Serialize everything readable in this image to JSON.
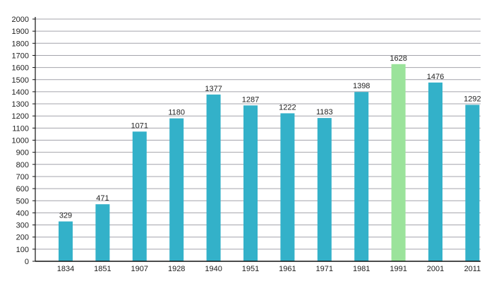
{
  "chart_data": {
    "type": "bar",
    "title": "",
    "xlabel": "",
    "ylabel": "",
    "categories": [
      "1834",
      "1851",
      "1907",
      "1928",
      "1940",
      "1951",
      "1961",
      "1971",
      "1981",
      "1991",
      "2001",
      "2011"
    ],
    "values": [
      329,
      471,
      1071,
      1180,
      1377,
      1287,
      1222,
      1183,
      1398,
      1628,
      1476,
      1292
    ],
    "ylim": [
      0,
      2000
    ],
    "yticks": [
      0,
      100,
      200,
      300,
      400,
      500,
      600,
      700,
      800,
      900,
      1000,
      1100,
      1200,
      1300,
      1400,
      1500,
      1600,
      1700,
      1800,
      1900,
      2000
    ],
    "grid": true,
    "legend": "none",
    "data_labels": true,
    "colors": {
      "default": "#33b1c9",
      "highlight": "#9be39b",
      "grid": "#a4a4ac",
      "axis": "#111111"
    },
    "highlight_category": "1991"
  }
}
